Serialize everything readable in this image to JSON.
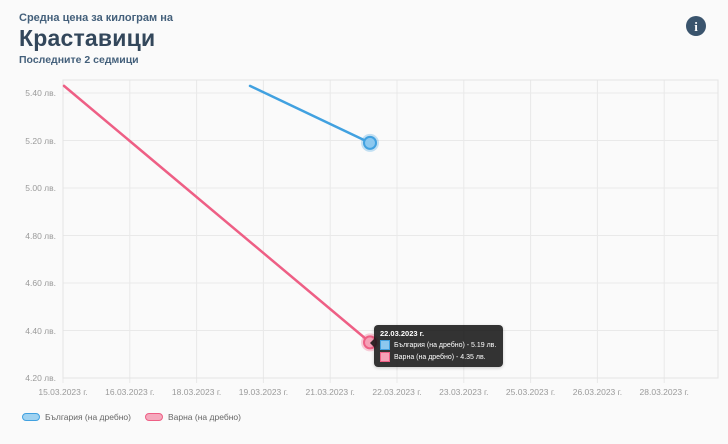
{
  "header": {
    "subtitle": "Средна цена за килограм на",
    "title": "Краставици",
    "period": "Последните 2 седмици",
    "info_icon": "i"
  },
  "chart_data": {
    "type": "line",
    "title": "Средна цена за килограм на Краставици",
    "ylim": [
      4.2,
      5.4
    ],
    "grid": true,
    "legend_position": "bottom-left",
    "y_ticks": [
      5.4,
      5.2,
      5.0,
      4.8,
      4.6,
      4.4,
      4.2
    ],
    "y_tick_labels": [
      "5.40 лв.",
      "5.20 лв.",
      "5.00 лв.",
      "4.80 лв.",
      "4.60 лв.",
      "4.40 лв.",
      "4.20 лв."
    ],
    "x_tick_labels": [
      "15.03.2023 г.",
      "16.03.2023 г.",
      "18.03.2023 г.",
      "19.03.2023 г.",
      "21.03.2023 г.",
      "22.03.2023 г.",
      "23.03.2023 г.",
      "25.03.2023 г.",
      "26.03.2023 г.",
      "28.03.2023 г."
    ],
    "series": [
      {
        "name": "България (на дребно)",
        "color": "#41a1e0",
        "fill_color": "#8cc8ef",
        "points": [
          {
            "date": "19.03.2023",
            "value": 5.43
          },
          {
            "date": "22.03.2023",
            "value": 5.19
          }
        ]
      },
      {
        "name": "Варна (на дребно)",
        "color": "#ee5f85",
        "fill_color": "#f5a0b6",
        "points": [
          {
            "date": "15.03.2023",
            "value": 5.43
          },
          {
            "date": "22.03.2023",
            "value": 4.35
          }
        ]
      }
    ],
    "highlighted_date": "22.03.2023 г."
  },
  "tooltip": {
    "title": "22.03.2023 г.",
    "rows": [
      {
        "series": "България (на дребно)",
        "text": "България (на дребно) - 5.19 лв."
      },
      {
        "series": "Варна (на дребно)",
        "text": "Варна (на дребно) - 4.35 лв."
      }
    ]
  },
  "legend": {
    "items": [
      {
        "label": "България (на дребно)",
        "color": "#41a1e0",
        "fill": "#9fd2f1"
      },
      {
        "label": "Варна (на дребно)",
        "color": "#ee5f85",
        "fill": "#f5a9bd"
      }
    ]
  }
}
